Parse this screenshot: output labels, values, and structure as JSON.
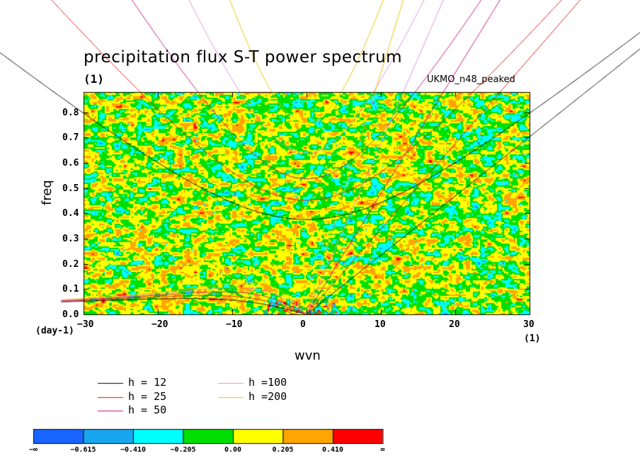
{
  "chart_data": {
    "type": "heatmap",
    "title": "precipitation flux S-T power spectrum",
    "units_label": "(1)",
    "model_label": "UKMO_n48_peaked",
    "xlabel": "wvn",
    "ylabel": "freq",
    "x_units": "(1)",
    "y_units": "(day-1)",
    "xlim": [
      -30,
      30
    ],
    "ylim": [
      0,
      0.88
    ],
    "x_ticks": [
      -30,
      -20,
      -10,
      0,
      10,
      20,
      30
    ],
    "x_tick_labels": [
      "−30",
      "−20",
      "−10",
      "0",
      "10",
      "20",
      "30"
    ],
    "y_ticks": [
      0,
      0.1,
      0.2,
      0.3,
      0.4,
      0.5,
      0.6,
      0.7,
      0.8
    ],
    "y_tick_labels": [
      "0.0",
      "0.1",
      "0.2",
      "0.3",
      "0.4",
      "0.5",
      "0.6",
      "0.7",
      "0.8"
    ],
    "field_note": "noisy filled contours mostly in the -0.205..0.205 range with small patches beyond",
    "dispersion_curves": [
      {
        "label": "h = 12",
        "h": 12,
        "color": "#000000"
      },
      {
        "label": "h = 25",
        "h": 25,
        "color": "#e01010"
      },
      {
        "label": "h = 50",
        "h": 50,
        "color": "#c8147a"
      },
      {
        "label": "h =100",
        "h": 100,
        "color": "#e090d8"
      },
      {
        "label": "h =200",
        "h": 200,
        "color": "#f0c000"
      }
    ],
    "colorbar": {
      "levels": [
        -0.615,
        -0.41,
        -0.205,
        0.0,
        0.205,
        0.41
      ],
      "level_labels": [
        "−∞",
        "−0.615",
        "−0.410",
        "−0.205",
        "0.00",
        "0.205",
        "0.410",
        "∞"
      ],
      "colors": [
        "#1a64ff",
        "#18a6f0",
        "#00ffff",
        "#00e000",
        "#ffff00",
        "#ffa500",
        "#ff0000"
      ]
    }
  }
}
